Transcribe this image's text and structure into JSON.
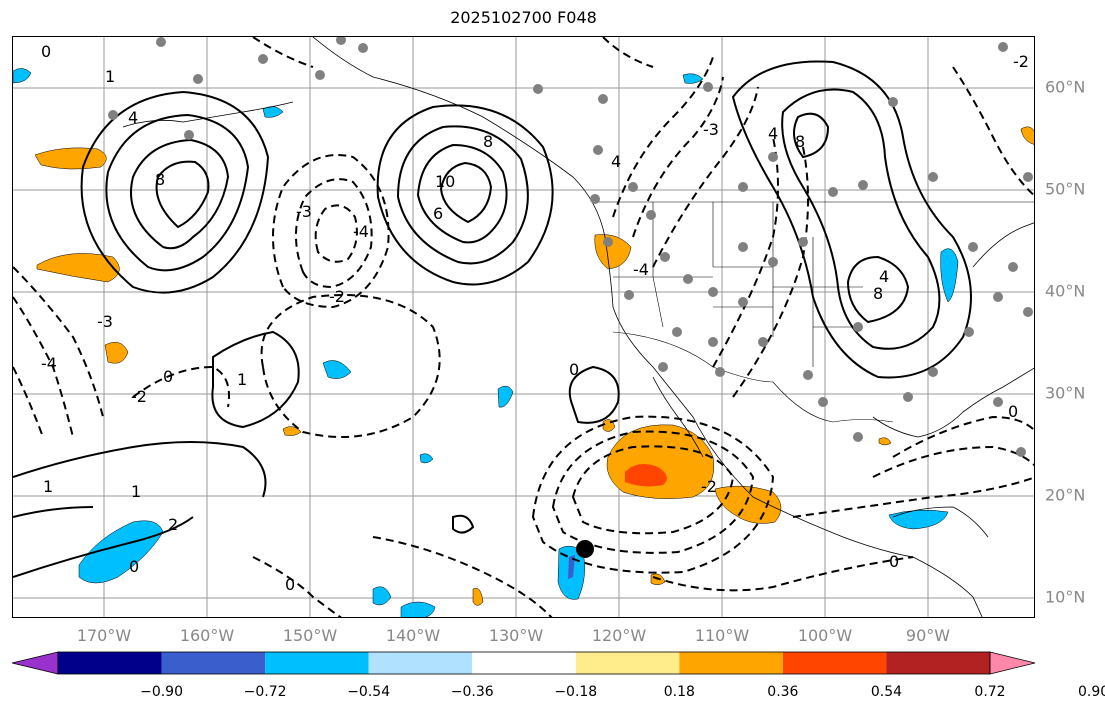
{
  "title": "2025102700 F048",
  "lon_labels": [
    "170°W",
    "160°W",
    "150°W",
    "140°W",
    "130°W",
    "120°W",
    "110°W",
    "100°W",
    "90°W"
  ],
  "lat_labels": [
    "60°N",
    "50°N",
    "40°N",
    "30°N",
    "20°N",
    "10°N"
  ],
  "colorbar": {
    "colors": [
      "#9932cc",
      "#00008b",
      "#3a5fcd",
      "#00bfff",
      "#b0e2ff",
      "#ffffff",
      "#ffec8b",
      "#ffa500",
      "#ff4500",
      "#b22222",
      "#ff88aa"
    ],
    "tick_labels": [
      "−0.90",
      "−0.72",
      "−0.54",
      "−0.36",
      "−0.18",
      "0.18",
      "0.36",
      "0.54",
      "0.72",
      "0.90"
    ]
  },
  "contour_labels": [
    "0",
    "1",
    "2",
    "3",
    "4",
    "6",
    "8",
    "10",
    "-1",
    "-2",
    "-3",
    "-4"
  ],
  "map": {
    "extent_lon": [
      -180,
      -80
    ],
    "extent_lat": [
      8,
      65
    ],
    "marker_colors": {
      "station": "#808080",
      "center": "#000000"
    }
  }
}
